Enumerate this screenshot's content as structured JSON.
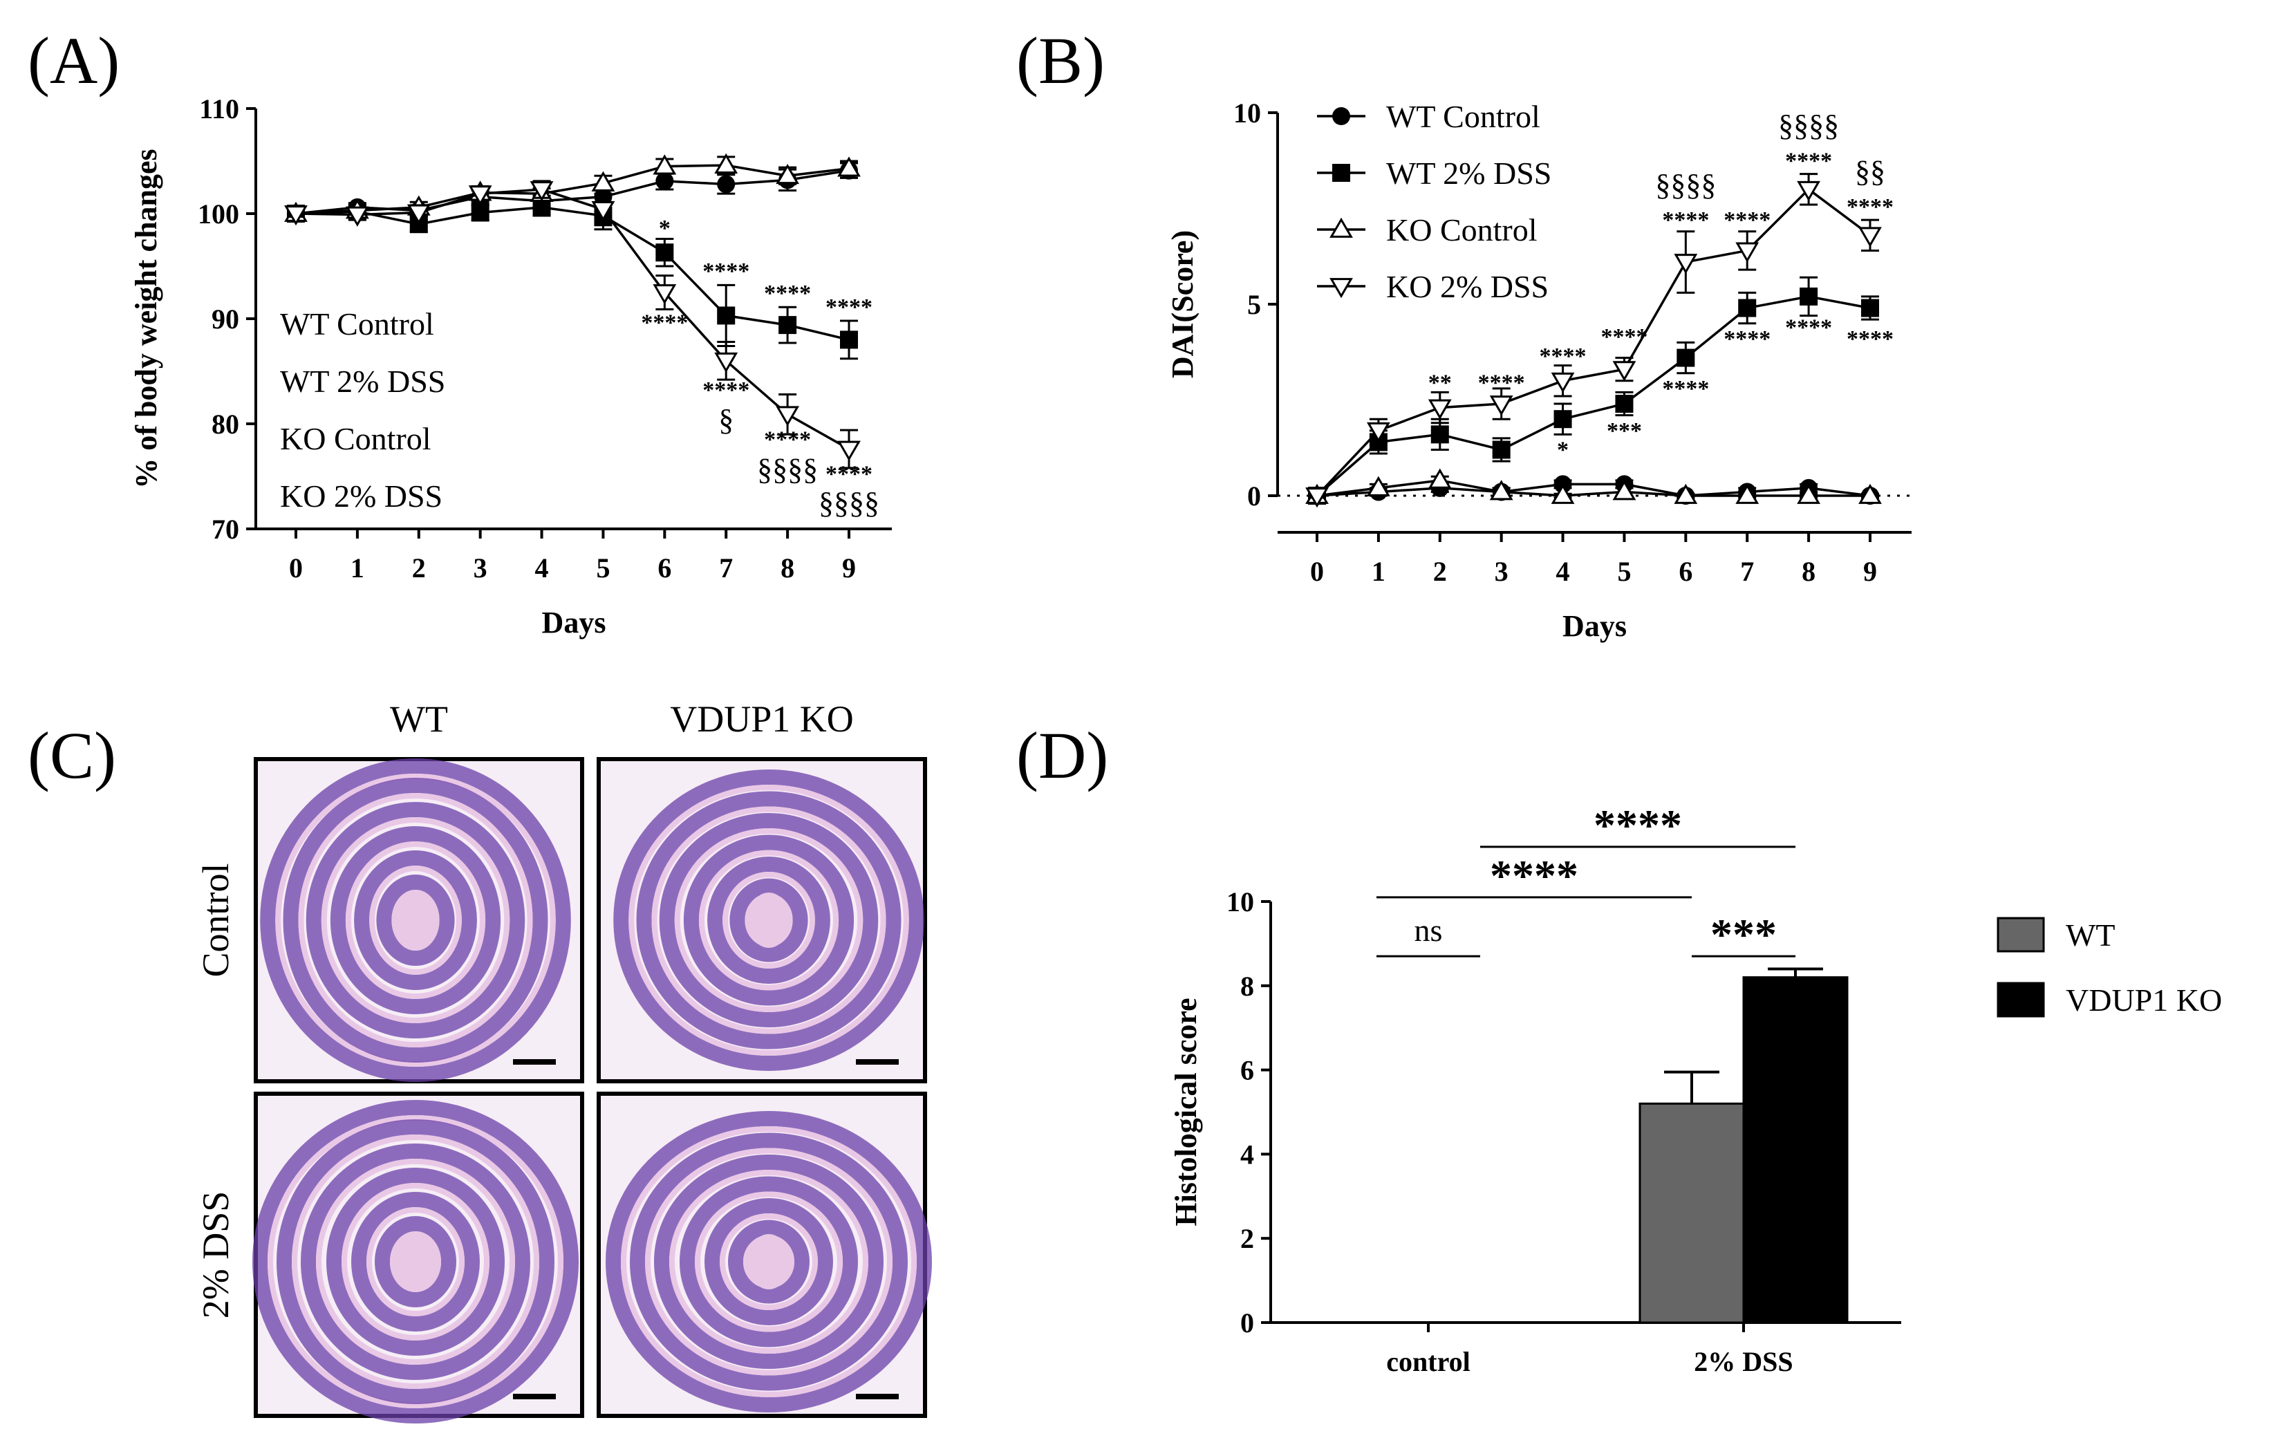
{
  "colors": {
    "wt_bar": "#666666",
    "ko_bar": "#000000",
    "tissue_light": "#e9c8e6",
    "tissue_dark": "#6a3fa8"
  },
  "panels": {
    "a": "(A)",
    "b": "(B)",
    "c": "(C)",
    "d": "(D)"
  },
  "chart_data": [
    {
      "id": "A",
      "type": "line",
      "xlabel": "Days",
      "ylabel": "% of body weight changes",
      "x": [
        0,
        1,
        2,
        3,
        4,
        5,
        6,
        7,
        8,
        9
      ],
      "ylim": [
        70,
        110
      ],
      "yticks": [
        70,
        80,
        90,
        100,
        110
      ],
      "legend_items": [
        "WT Control",
        "WT 2% DSS",
        "KO Control",
        "KO 2% DSS"
      ],
      "series": [
        {
          "name": "WT Control",
          "marker": "filled-circle",
          "values": [
            100,
            100.6,
            100.3,
            101.6,
            101.2,
            101.6,
            103.1,
            102.8,
            103.2,
            104.1
          ],
          "err": [
            0.3,
            0.4,
            0.5,
            0.6,
            0.5,
            0.6,
            0.8,
            0.9,
            1.0,
            0.7
          ]
        },
        {
          "name": "WT 2% DSS",
          "marker": "filled-square",
          "values": [
            100,
            100.2,
            99.0,
            100.1,
            100.6,
            99.8,
            96.3,
            90.3,
            89.4,
            88.0
          ],
          "err": [
            0.3,
            0.5,
            0.7,
            0.7,
            0.8,
            1.3,
            1.3,
            2.9,
            1.7,
            1.8
          ]
        },
        {
          "name": "KO Control",
          "marker": "open-up-triangle",
          "values": [
            100,
            100.3,
            100.6,
            102.0,
            101.9,
            102.9,
            104.5,
            104.6,
            103.6,
            104.3
          ],
          "err": [
            0.3,
            0.4,
            0.5,
            0.6,
            0.5,
            0.7,
            0.7,
            0.8,
            0.8,
            0.7
          ]
        },
        {
          "name": "KO 2% DSS",
          "marker": "open-down-triangle",
          "values": [
            100,
            99.9,
            100.1,
            101.9,
            102.3,
            100.4,
            92.5,
            86.0,
            80.9,
            77.6
          ],
          "err": [
            0.3,
            0.5,
            0.7,
            0.7,
            0.8,
            1.5,
            1.6,
            1.8,
            1.9,
            1.8
          ]
        }
      ],
      "annotations": [
        {
          "x": 6,
          "y": 97.9,
          "text": "*"
        },
        {
          "x": 7,
          "y": 93.8,
          "text": "****"
        },
        {
          "x": 8,
          "y": 91.7,
          "text": "****"
        },
        {
          "x": 9,
          "y": 90.4,
          "text": "****"
        },
        {
          "x": 6,
          "y": 88.9,
          "text": "****"
        },
        {
          "x": 7,
          "y": 82.5,
          "text": "****"
        },
        {
          "x": 7,
          "y": 79.4,
          "text": "§"
        },
        {
          "x": 8,
          "y": 77.8,
          "text": "****"
        },
        {
          "x": 8,
          "y": 74.7,
          "text": "§§§§"
        },
        {
          "x": 9,
          "y": 74.5,
          "text": "****"
        },
        {
          "x": 9,
          "y": 71.5,
          "text": "§§§§"
        }
      ]
    },
    {
      "id": "B",
      "type": "line",
      "xlabel": "Days",
      "ylabel": "DAI(Score)",
      "x": [
        0,
        1,
        2,
        3,
        4,
        5,
        6,
        7,
        8,
        9
      ],
      "ylim": [
        0,
        10
      ],
      "yticks": [
        0,
        5,
        10
      ],
      "legend_items": [
        "WT Control",
        "WT 2% DSS",
        "KO Control",
        "KO 2% DSS"
      ],
      "series": [
        {
          "name": "WT Control",
          "marker": "filled-circle",
          "values": [
            0,
            0.1,
            0.2,
            0.1,
            0.3,
            0.3,
            0,
            0.1,
            0.2,
            0
          ],
          "err": [
            0.05,
            0.1,
            0.1,
            0.1,
            0.1,
            0.1,
            0.05,
            0.1,
            0.1,
            0.05
          ]
        },
        {
          "name": "WT 2% DSS",
          "marker": "filled-square",
          "values": [
            0,
            1.4,
            1.6,
            1.2,
            2.0,
            2.4,
            3.6,
            4.9,
            5.2,
            4.9
          ],
          "err": [
            0.05,
            0.3,
            0.4,
            0.3,
            0.4,
            0.3,
            0.4,
            0.4,
            0.5,
            0.3
          ]
        },
        {
          "name": "KO Control",
          "marker": "open-up-triangle",
          "values": [
            0,
            0.2,
            0.4,
            0.1,
            0,
            0.1,
            0,
            0,
            0,
            0
          ],
          "err": [
            0.05,
            0.1,
            0.1,
            0.1,
            0.05,
            0.1,
            0.05,
            0.05,
            0.05,
            0.05
          ]
        },
        {
          "name": "KO 2% DSS",
          "marker": "open-down-triangle",
          "values": [
            0,
            1.7,
            2.3,
            2.4,
            3.0,
            3.3,
            6.1,
            6.4,
            8.0,
            6.8
          ],
          "err": [
            0.05,
            0.3,
            0.4,
            0.4,
            0.4,
            0.3,
            0.8,
            0.5,
            0.4,
            0.4
          ]
        }
      ],
      "annotations": [
        {
          "x": 2,
          "y": 2.75,
          "text": "**"
        },
        {
          "x": 3,
          "y": 2.75,
          "text": "****"
        },
        {
          "x": 4,
          "y": 3.45,
          "text": "****"
        },
        {
          "x": 5,
          "y": 3.95,
          "text": "****"
        },
        {
          "x": 6,
          "y": 7.0,
          "text": "****"
        },
        {
          "x": 6,
          "y": 7.85,
          "text": "§§§§"
        },
        {
          "x": 7,
          "y": 7.0,
          "text": "****"
        },
        {
          "x": 8,
          "y": 8.55,
          "text": "****"
        },
        {
          "x": 8,
          "y": 9.4,
          "text": "§§§§"
        },
        {
          "x": 9,
          "y": 7.35,
          "text": "****"
        },
        {
          "x": 9,
          "y": 8.2,
          "text": "§§"
        },
        {
          "x": 4,
          "y": 1.0,
          "text": "*"
        },
        {
          "x": 5,
          "y": 1.5,
          "text": "***"
        },
        {
          "x": 6,
          "y": 2.6,
          "text": "****"
        },
        {
          "x": 7,
          "y": 3.9,
          "text": "****"
        },
        {
          "x": 8,
          "y": 4.2,
          "text": "****"
        },
        {
          "x": 9,
          "y": 3.9,
          "text": "****"
        }
      ]
    },
    {
      "id": "D",
      "type": "bar",
      "ylabel": "Histological score",
      "categories": [
        "control",
        "2% DSS"
      ],
      "ylim": [
        0,
        10
      ],
      "yticks": [
        0,
        2,
        4,
        6,
        8,
        10
      ],
      "series": [
        {
          "name": "WT",
          "color": "#666666",
          "values": [
            0,
            5.2
          ],
          "err": [
            0,
            0.75
          ]
        },
        {
          "name": "VDUP1 KO",
          "color": "#000000",
          "values": [
            0,
            8.2
          ],
          "err": [
            0,
            0.2
          ]
        }
      ],
      "brackets": [
        {
          "y": 8.7,
          "from": "control/WT",
          "to": "control/VDUP1 KO",
          "text": "ns"
        },
        {
          "y": 8.7,
          "from": "2% DSS/WT",
          "to": "2% DSS/VDUP1 KO",
          "text": "***"
        },
        {
          "y": 10.1,
          "from": "control/WT",
          "to": "2% DSS/WT",
          "text": "****"
        },
        {
          "y": 11.3,
          "from": "control/VDUP1 KO",
          "to": "2% DSS/VDUP1 KO",
          "text": "****"
        }
      ]
    }
  ],
  "micrographs": {
    "col_headers": [
      "WT",
      "VDUP1 KO"
    ],
    "row_labels": [
      "Control",
      "2% DSS"
    ]
  }
}
